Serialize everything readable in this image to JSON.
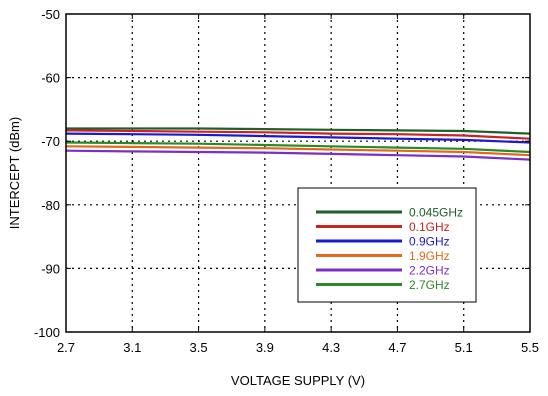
{
  "chart_data": {
    "type": "line",
    "title": "",
    "xlabel": "VOLTAGE SUPPLY (V)",
    "ylabel": "INTERCEPT (dBm)",
    "xlim": [
      2.7,
      5.5
    ],
    "ylim": [
      -100,
      -50
    ],
    "x_ticks": [
      2.7,
      3.1,
      3.5,
      3.9,
      4.3,
      4.7,
      5.1,
      5.5
    ],
    "x_tick_labels": [
      "2.7",
      "3.1",
      "3.5",
      "3.9",
      "4.3",
      "4.7",
      "5.1",
      "5.5"
    ],
    "y_ticks": [
      -100,
      -90,
      -80,
      -70,
      -60,
      -50
    ],
    "y_tick_labels": [
      "-100",
      "-90",
      "-80",
      "-70",
      "-60",
      "-50"
    ],
    "grid": true,
    "grid_style": "dotted",
    "legend_position": "lower-right",
    "series": [
      {
        "name": "0.045GHz",
        "color": "#1f5f2a",
        "x": [
          2.7,
          3.1,
          3.5,
          3.9,
          4.3,
          4.7,
          5.1,
          5.5
        ],
        "y": [
          -68.0,
          -68.0,
          -68.0,
          -68.1,
          -68.2,
          -68.3,
          -68.4,
          -68.8
        ]
      },
      {
        "name": "0.1GHz",
        "color": "#cc2222",
        "x": [
          2.7,
          3.1,
          3.5,
          3.9,
          4.3,
          4.7,
          5.1,
          5.5
        ],
        "y": [
          -68.3,
          -68.4,
          -68.5,
          -68.6,
          -68.8,
          -68.9,
          -69.1,
          -69.6
        ]
      },
      {
        "name": "0.9GHz",
        "color": "#1a1acc",
        "x": [
          2.7,
          3.1,
          3.5,
          3.9,
          4.3,
          4.7,
          5.1,
          5.5
        ],
        "y": [
          -68.8,
          -68.9,
          -69.0,
          -69.2,
          -69.4,
          -69.6,
          -69.8,
          -70.2
        ]
      },
      {
        "name": "1.9GHz",
        "color": "#e06a1a",
        "x": [
          2.7,
          3.1,
          3.5,
          3.9,
          4.3,
          4.7,
          5.1,
          5.5
        ],
        "y": [
          -70.8,
          -70.9,
          -71.0,
          -71.1,
          -71.3,
          -71.5,
          -71.7,
          -72.2
        ]
      },
      {
        "name": "2.2GHz",
        "color": "#7a30c8",
        "x": [
          2.7,
          3.1,
          3.5,
          3.9,
          4.3,
          4.7,
          5.1,
          5.5
        ],
        "y": [
          -71.5,
          -71.6,
          -71.7,
          -71.8,
          -72.0,
          -72.2,
          -72.4,
          -72.9
        ]
      },
      {
        "name": "2.7GHz",
        "color": "#2a8a2a",
        "x": [
          2.7,
          3.1,
          3.5,
          3.9,
          4.3,
          4.7,
          5.1,
          5.5
        ],
        "y": [
          -70.2,
          -70.3,
          -70.4,
          -70.6,
          -70.8,
          -71.0,
          -71.2,
          -71.7
        ]
      }
    ]
  }
}
